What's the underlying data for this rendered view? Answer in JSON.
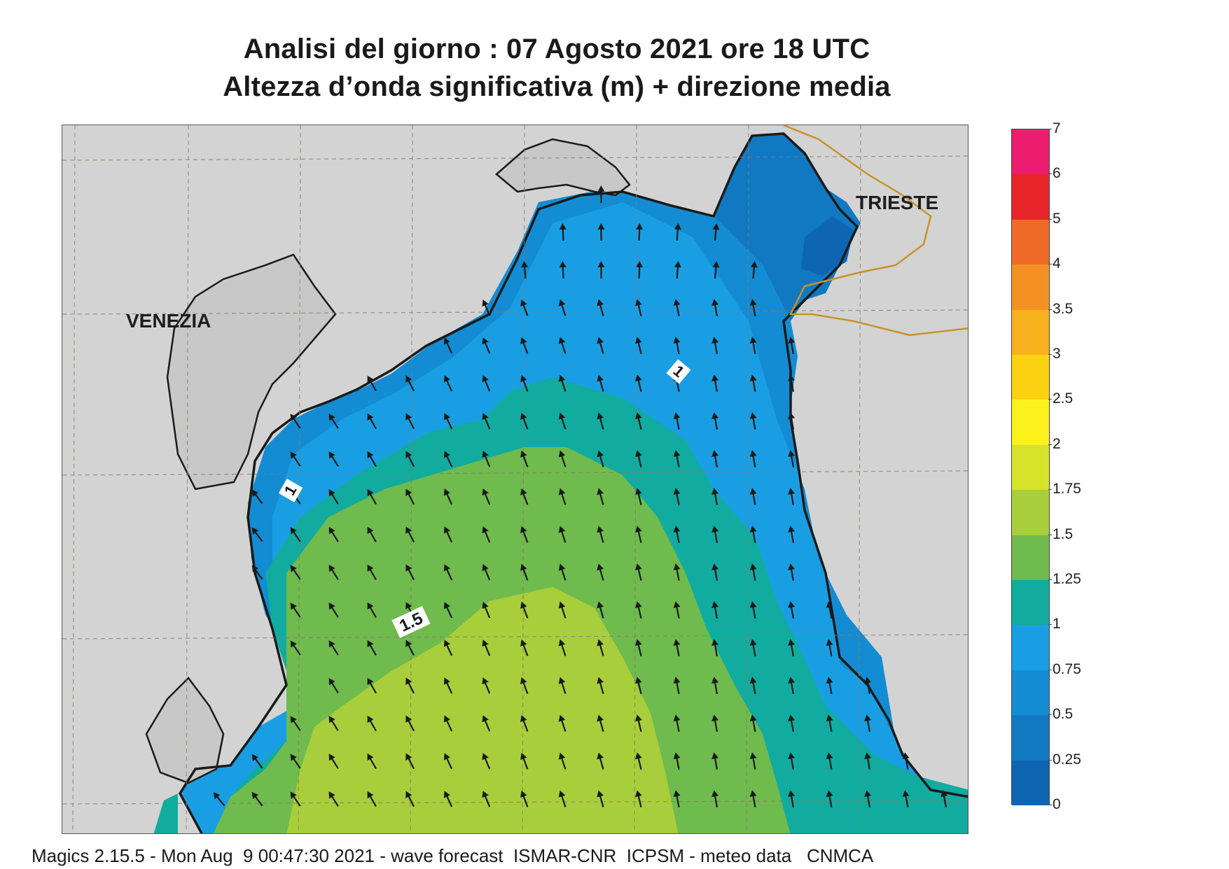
{
  "title": {
    "line1": "Analisi del giorno :  07   Agosto  2021   ore 18 UTC",
    "line2": "Altezza d’onda significativa (m) + direzione media"
  },
  "cities": {
    "venezia": "VENEZIA",
    "trieste": "TRIESTE"
  },
  "contour_labels": {
    "one_a": "1",
    "one_b": "1",
    "one_five": "1.5"
  },
  "legend": {
    "labels": [
      "7",
      "6",
      "5",
      "4",
      "3.5",
      "3",
      "2.5",
      "2",
      "1.75",
      "1.5",
      "1.25",
      "1",
      "0.75",
      "0.5",
      "0.25",
      "0"
    ],
    "colors": [
      "#ec1d6e",
      "#e8262a",
      "#ef6a26",
      "#f39223",
      "#f7b11d",
      "#fad20f",
      "#fdf11c",
      "#d7e22a",
      "#a8ce3c",
      "#6fbb4d",
      "#12ab9f",
      "#1a9ee3",
      "#138cd3",
      "#1079c2",
      "#0e66b2"
    ]
  },
  "colors": {
    "land": "#d3d3d3",
    "wave_025_05": "#1079c2",
    "wave_0_025": "#0e66b2",
    "wave_05_075": "#138cd3",
    "wave_075_1": "#1a9ee3",
    "wave_1_125": "#12ab9f",
    "wave_125_15": "#6fbb4d",
    "wave_15_175": "#a8ce3c",
    "border": "#c8932a"
  },
  "footer": "Magics 2.15.5 - Mon Aug  9 00:47:30 2021 - wave forecast  ISMAR-CNR  ICPSM - meteo data   CNMCA"
}
